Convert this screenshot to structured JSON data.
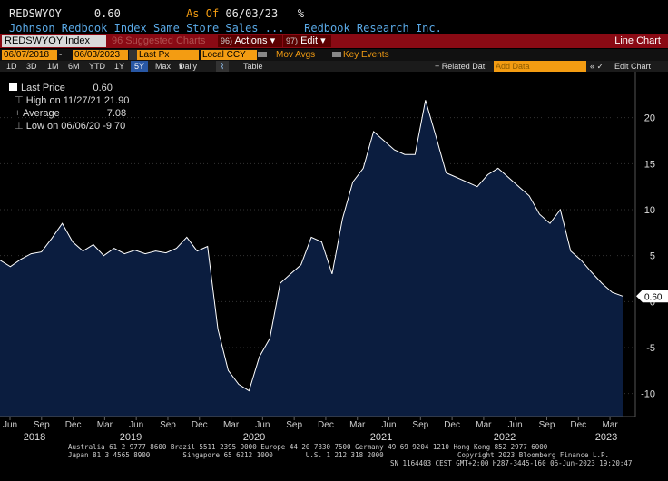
{
  "header": {
    "ticker": "REDSWYOY",
    "last_value": "0.60",
    "as_of_label": "As Of",
    "as_of_date": "06/03/23",
    "pct_sign": "%",
    "description": "Johnson Redbook Index Same Store Sales ...",
    "source": "Redbook Research Inc."
  },
  "toolbar": {
    "security": "REDSWYOY Index",
    "suggested": "96 Suggested Charts",
    "actions": "Actions",
    "actions_num": "96)",
    "edit": "Edit",
    "edit_num": "97)",
    "view": "Line Chart"
  },
  "controls": {
    "start_date": "06/07/2018",
    "end_date": "06/03/2023",
    "field": "Last Px",
    "currency": "Local CCY",
    "mov_avgs": "Mov Avgs",
    "key_events": "Key Events"
  },
  "periods": {
    "items": [
      "1D",
      "3D",
      "1M",
      "6M",
      "YTD",
      "1Y",
      "5Y",
      "Max"
    ],
    "selected": "5Y",
    "frequency": "Daily",
    "table": "Table",
    "related": "+ Related Dat",
    "add_data_placeholder": "Add Data",
    "edit_chart": "Edit Chart"
  },
  "legend": {
    "last_price_label": "Last Price",
    "last_price_value": "0.60",
    "high_label": "High on 11/27/21",
    "high_value": "21.90",
    "average_label": "Average",
    "average_value": "7.08",
    "low_label": "Low on 06/06/20",
    "low_value": "-9.70"
  },
  "colors": {
    "fill": "#0b1d3f",
    "line": "#ffffff",
    "orange": "#f39c12",
    "toolbar_red": "#8a0a14"
  },
  "chart_data": {
    "type": "area",
    "title": "REDSWYOY Index",
    "ylim": [
      -12.5,
      25
    ],
    "yticks": [
      -10,
      -5,
      0,
      5,
      10,
      15,
      20
    ],
    "x": [
      "2018-06",
      "2018-07",
      "2018-08",
      "2018-09",
      "2018-10",
      "2018-11",
      "2018-12",
      "2019-01",
      "2019-02",
      "2019-03",
      "2019-04",
      "2019-05",
      "2019-06",
      "2019-07",
      "2019-08",
      "2019-09",
      "2019-10",
      "2019-11",
      "2019-12",
      "2020-01",
      "2020-02",
      "2020-03",
      "2020-04",
      "2020-05",
      "2020-06",
      "2020-07",
      "2020-08",
      "2020-09",
      "2020-10",
      "2020-11",
      "2020-12",
      "2021-01",
      "2021-02",
      "2021-03",
      "2021-04",
      "2021-05",
      "2021-06",
      "2021-07",
      "2021-08",
      "2021-09",
      "2021-10",
      "2021-11",
      "2021-12",
      "2022-01",
      "2022-02",
      "2022-03",
      "2022-04",
      "2022-05",
      "2022-06",
      "2022-07",
      "2022-08",
      "2022-09",
      "2022-10",
      "2022-11",
      "2022-12",
      "2023-01",
      "2023-02",
      "2023-03",
      "2023-04",
      "2023-05",
      "2023-06"
    ],
    "values": [
      4.5,
      3.8,
      4.6,
      5.2,
      5.4,
      6.9,
      8.5,
      6.5,
      5.5,
      6.2,
      5.0,
      5.8,
      5.2,
      5.6,
      5.2,
      5.5,
      5.3,
      5.8,
      7.0,
      5.5,
      6.0,
      -3.0,
      -7.5,
      -9.0,
      -9.7,
      -6.0,
      -4.0,
      2.0,
      3.0,
      4.0,
      7.0,
      6.5,
      3.0,
      9.0,
      13.0,
      14.5,
      18.5,
      17.5,
      16.5,
      16.0,
      16.0,
      21.9,
      18.0,
      14.0,
      13.5,
      13.0,
      12.5,
      13.8,
      14.5,
      13.5,
      12.5,
      11.5,
      9.5,
      8.5,
      10.0,
      5.5,
      4.5,
      3.2,
      2.0,
      1.0,
      0.6
    ],
    "x_ticks": [
      "Jun",
      "Sep",
      "Dec",
      "Mar",
      "Jun",
      "Sep",
      "Dec",
      "Mar",
      "Jun",
      "Sep",
      "Dec",
      "Mar",
      "Jun",
      "Sep",
      "Dec",
      "Mar",
      "Jun",
      "Sep",
      "Dec",
      "Mar"
    ],
    "x_years": [
      "2018",
      "2019",
      "2020",
      "2021",
      "2022",
      "2023"
    ],
    "last_label": "0.60"
  },
  "footer": {
    "line1": "Australia 61 2 9777 8600 Brazil 5511 2395 9000 Europe 44 20 7330 7500 Germany 49 69 9204 1210 Hong Kong 852 2977 6000",
    "line2": "Japan 81 3 4565 8900        Singapore 65 6212 1000        U.S. 1 212 318 2000                  Copyright 2023 Bloomberg Finance L.P.",
    "line3": "SN 1164403 CEST GMT+2:00 H287-3445-160 06-Jun-2023 19:20:47"
  }
}
